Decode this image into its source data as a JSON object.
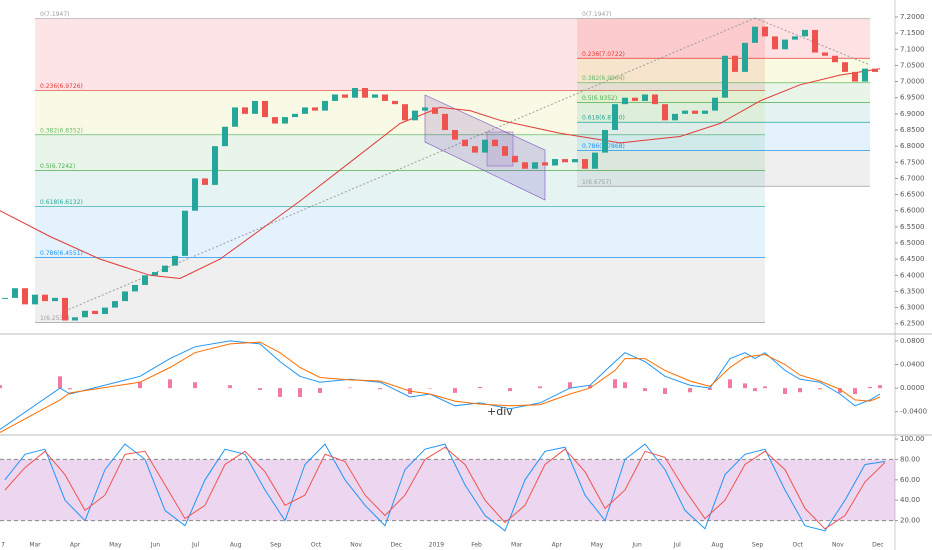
{
  "chart_data": [
    {
      "type": "candlestick",
      "values": [
        6.33,
        6.36,
        6.31,
        6.34,
        6.32,
        6.33,
        6.26,
        6.27,
        6.29,
        6.28,
        6.3,
        6.32,
        6.35,
        6.37,
        6.4,
        6.41,
        6.43,
        6.46,
        6.6,
        6.7,
        6.68,
        6.8,
        6.86,
        6.92,
        6.9,
        6.94,
        6.89,
        6.87,
        6.89,
        6.9,
        6.92,
        6.91,
        6.94,
        6.96,
        6.95,
        6.98,
        6.95,
        6.96,
        6.94,
        6.93,
        6.88,
        6.91,
        6.92,
        6.9,
        6.85,
        6.82,
        6.8,
        6.78,
        6.82,
        6.8,
        6.77,
        6.75,
        6.73,
        6.75,
        6.74,
        6.76,
        6.75,
        6.76,
        6.73,
        6.78,
        6.85,
        6.93,
        6.95,
        6.94,
        6.96,
        6.93,
        6.88,
        6.9,
        6.91,
        6.9,
        6.91,
        6.95,
        7.08,
        7.03,
        7.12,
        7.17,
        7.14,
        7.1,
        7.13,
        7.14,
        7.16,
        7.09,
        7.08,
        7.06,
        7.03,
        7.0,
        7.04,
        7.03
      ],
      "color_up": "#26a69a",
      "color_down": "#ef5350",
      "xlim": [
        -0.5,
        89
      ],
      "ylim": [
        6.22,
        7.22
      ],
      "yticks": [
        {
          "value": 7.2,
          "label": "7.2000"
        },
        {
          "value": 7.15,
          "label": "7.1500"
        },
        {
          "value": 7.1,
          "label": "7.1000"
        },
        {
          "value": 7.05,
          "label": "7.0500"
        },
        {
          "value": 7.0,
          "label": "7.0000"
        },
        {
          "value": 6.95,
          "label": "6.9500"
        },
        {
          "value": 6.9,
          "label": "6.9000"
        },
        {
          "value": 6.85,
          "label": "6.8500"
        },
        {
          "value": 6.8,
          "label": "6.8000"
        },
        {
          "value": 6.75,
          "label": "6.7500"
        },
        {
          "value": 6.7,
          "label": "6.7000"
        },
        {
          "value": 6.65,
          "label": "6.6500"
        },
        {
          "value": 6.6,
          "label": "6.6000"
        },
        {
          "value": 6.55,
          "label": "6.5500"
        },
        {
          "value": 6.5,
          "label": "6.5000"
        },
        {
          "value": 6.45,
          "label": "6.4500"
        },
        {
          "value": 6.4,
          "label": "6.4000"
        },
        {
          "value": 6.35,
          "label": "6.3500"
        },
        {
          "value": 6.3,
          "label": "6.3000"
        },
        {
          "value": 6.25,
          "label": "6.2500"
        }
      ],
      "moving_average": {
        "color": "#e53935",
        "x": [
          -0.5,
          4.5,
          9.5,
          14.5,
          17.5,
          21.5,
          25.5,
          29.5,
          34.5,
          39.5,
          43.5,
          46.5,
          49.5,
          55.5,
          61.5,
          67.5,
          71.5,
          75.5,
          79.5,
          83.5,
          87.5
        ],
        "values": [
          6.6,
          6.52,
          6.45,
          6.4,
          6.39,
          6.45,
          6.54,
          6.63,
          6.75,
          6.87,
          6.92,
          6.91,
          6.88,
          6.84,
          6.81,
          6.83,
          6.87,
          6.94,
          6.99,
          7.02,
          7.04
        ]
      },
      "fib_sets": [
        {
          "levels": [
            {
              "label": "0(7.1947)",
              "value": 7.1947,
              "color": "#9e9e9e",
              "fill": "rgba(242,54,69,0.13)"
            },
            {
              "label": "0.236(6.9726)",
              "value": 6.9726,
              "color": "#e53935",
              "fill": "rgba(205,220,57,0.13)"
            },
            {
              "label": "0.382(6.8352)",
              "value": 6.8352,
              "color": "#66bb6a",
              "fill": "rgba(76,175,80,0.12)"
            },
            {
              "label": "0.5(6.7242)",
              "value": 6.7242,
              "color": "#4caf50",
              "fill": "rgba(0,150,136,0.10)"
            },
            {
              "label": "0.618(6.6132)",
              "value": 6.6132,
              "color": "#26a69a",
              "fill": "rgba(33,150,243,0.12)"
            },
            {
              "label": "0.786(6.4551)",
              "value": 6.4551,
              "color": "#2196f3",
              "fill": "rgba(120,120,120,0.12)"
            },
            {
              "label": "1(6.2537)",
              "value": 6.2537,
              "color": "#9e9e9e"
            }
          ]
        },
        {
          "levels": [
            {
              "label": "0(7.1947)",
              "value": 7.1947,
              "color": "#9e9e9e",
              "fill": "rgba(242,54,69,0.15)"
            },
            {
              "label": "0.236(7.0722)",
              "value": 7.0722,
              "color": "#e53935",
              "fill": "rgba(205,220,57,0.15)"
            },
            {
              "label": "0.382(6.9964)",
              "value": 6.9964,
              "color": "#66bb6a",
              "fill": "rgba(76,175,80,0.13)"
            },
            {
              "label": "0.5(6.9352)",
              "value": 6.9352,
              "color": "#4caf50",
              "fill": "rgba(0,150,136,0.11)"
            },
            {
              "label": "0.618(6.8740)",
              "value": 6.874,
              "color": "#26a69a",
              "fill": "rgba(33,150,243,0.12)"
            },
            {
              "label": "0.786(6.7868)",
              "value": 6.7868,
              "color": "#2196f3",
              "fill": "rgba(120,120,120,0.12)"
            },
            {
              "label": "1(6.6757)",
              "value": 6.6757,
              "color": "#9e9e9e"
            }
          ]
        }
      ]
    },
    {
      "type": "macd",
      "xlim": [
        -0.5,
        89
      ],
      "ylim": [
        -0.076,
        0.09
      ],
      "yticks": [
        {
          "value": 0.08,
          "label": "0.0800"
        },
        {
          "value": 0.04,
          "label": "0.0400"
        },
        {
          "value": 0,
          "label": "0.0000"
        },
        {
          "value": -0.04,
          "label": "-0.0400"
        }
      ],
      "x": [
        -0.5,
        5.5,
        6.5,
        13.5,
        16.5,
        19,
        22.5,
        25.5,
        27.5,
        29.5,
        31.5,
        34.5,
        37.5,
        40.5,
        42.5,
        45,
        47.5,
        50.5,
        53.5,
        56.5,
        58.5,
        61,
        62,
        64,
        66,
        68.5,
        70.5,
        72.5,
        74,
        75,
        76,
        78,
        79.5,
        81.5,
        83.5,
        85,
        86.5,
        87.5
      ],
      "lines": [
        {
          "color": "#2196f3",
          "values": [
            -0.07,
            0.0,
            -0.01,
            0.02,
            0.05,
            0.07,
            0.08,
            0.075,
            0.045,
            0.02,
            0.01,
            0.015,
            0.01,
            -0.015,
            -0.01,
            -0.03,
            -0.025,
            -0.035,
            -0.025,
            0.0,
            0.005,
            0.045,
            0.06,
            0.045,
            0.02,
            0.005,
            0.0,
            0.05,
            0.06,
            0.05,
            0.06,
            0.03,
            0.015,
            0.01,
            -0.01,
            -0.03,
            -0.02,
            -0.01
          ]
        },
        {
          "color": "#ff6d00",
          "values": [
            -0.075,
            -0.02,
            -0.008,
            0.01,
            0.035,
            0.06,
            0.075,
            0.078,
            0.06,
            0.035,
            0.018,
            0.014,
            0.012,
            -0.005,
            -0.01,
            -0.022,
            -0.027,
            -0.03,
            -0.028,
            -0.01,
            0.0,
            0.03,
            0.05,
            0.05,
            0.03,
            0.012,
            0.003,
            0.035,
            0.052,
            0.055,
            0.057,
            0.04,
            0.022,
            0.012,
            -0.002,
            -0.02,
            -0.022,
            -0.015
          ]
        }
      ],
      "histogram": {
        "color": "#ec407a",
        "values": [
          0.005,
          0.02,
          -0.002,
          0.01,
          0.015,
          0.01,
          0.005,
          -0.003,
          -0.015,
          -0.015,
          -0.008,
          0.001,
          -0.002,
          -0.01,
          0.0,
          -0.008,
          0.002,
          -0.005,
          0.003,
          0.01,
          0.005,
          0.015,
          0.01,
          -0.005,
          -0.01,
          -0.007,
          -0.003,
          0.015,
          0.008,
          -0.005,
          0.003,
          -0.01,
          -0.007,
          -0.002,
          -0.008,
          -0.01,
          0.002,
          0.005
        ]
      },
      "annotation": "+div"
    },
    {
      "type": "stochastic",
      "xlim": [
        -0.5,
        89
      ],
      "ylim": [
        0,
        102
      ],
      "yticks": [
        {
          "value": 100,
          "label": "100.00"
        },
        {
          "value": 80,
          "label": "80.00"
        },
        {
          "value": 60,
          "label": "60.00"
        },
        {
          "value": 40,
          "label": "40.00"
        },
        {
          "value": 20,
          "label": "20.00"
        }
      ],
      "band": [
        20,
        80
      ],
      "band_color": "rgba(171,71,188,0.22)",
      "x": [
        0,
        2,
        4,
        6,
        8,
        10,
        12,
        14,
        16,
        18,
        20,
        22,
        24,
        26,
        28,
        30,
        32,
        34,
        36,
        38,
        40,
        42,
        44,
        46,
        48,
        50,
        52,
        54,
        56,
        58,
        60,
        62,
        64,
        66,
        68,
        70,
        72,
        74,
        76,
        78,
        80,
        82,
        84,
        86,
        88
      ],
      "lines": [
        {
          "color": "#2196f3",
          "values": [
            60,
            85,
            90,
            40,
            20,
            70,
            95,
            80,
            30,
            15,
            60,
            90,
            85,
            50,
            20,
            75,
            95,
            60,
            35,
            15,
            70,
            90,
            95,
            55,
            25,
            10,
            60,
            88,
            92,
            45,
            20,
            80,
            95,
            70,
            30,
            12,
            65,
            85,
            90,
            50,
            15,
            10,
            40,
            75,
            78
          ]
        },
        {
          "color": "#ef5350",
          "values": [
            50,
            72,
            88,
            65,
            30,
            45,
            85,
            88,
            55,
            22,
            35,
            75,
            88,
            68,
            35,
            45,
            85,
            78,
            45,
            25,
            45,
            80,
            92,
            75,
            40,
            18,
            35,
            75,
            90,
            68,
            32,
            50,
            88,
            82,
            50,
            22,
            40,
            75,
            88,
            70,
            32,
            12,
            25,
            58,
            77
          ]
        }
      ],
      "xticks": [
        {
          "value": -0.2,
          "label": "7"
        },
        {
          "value": 3.0,
          "label": "Mar"
        },
        {
          "value": 7.01,
          "label": "Apr"
        },
        {
          "value": 11.03,
          "label": "May"
        },
        {
          "value": 15.04,
          "label": "Jun"
        },
        {
          "value": 19.06,
          "label": "Jul"
        },
        {
          "value": 23.07,
          "label": "Aug"
        },
        {
          "value": 27.08,
          "label": "Sep"
        },
        {
          "value": 31.1,
          "label": "Oct"
        },
        {
          "value": 35.11,
          "label": "Nov"
        },
        {
          "value": 39.13,
          "label": "Dec"
        },
        {
          "value": 43.14,
          "label": "2019"
        },
        {
          "value": 47.15,
          "label": "Feb"
        },
        {
          "value": 51.17,
          "label": "Mar"
        },
        {
          "value": 55.18,
          "label": "Apr"
        },
        {
          "value": 59.2,
          "label": "May"
        },
        {
          "value": 63.21,
          "label": "Jun"
        },
        {
          "value": 67.22,
          "label": "Jul"
        },
        {
          "value": 71.24,
          "label": "Aug"
        },
        {
          "value": 75.25,
          "label": "Sep"
        },
        {
          "value": 79.27,
          "label": "Oct"
        },
        {
          "value": 83.28,
          "label": "Nov"
        },
        {
          "value": 87.29,
          "label": "Dec"
        }
      ]
    }
  ]
}
